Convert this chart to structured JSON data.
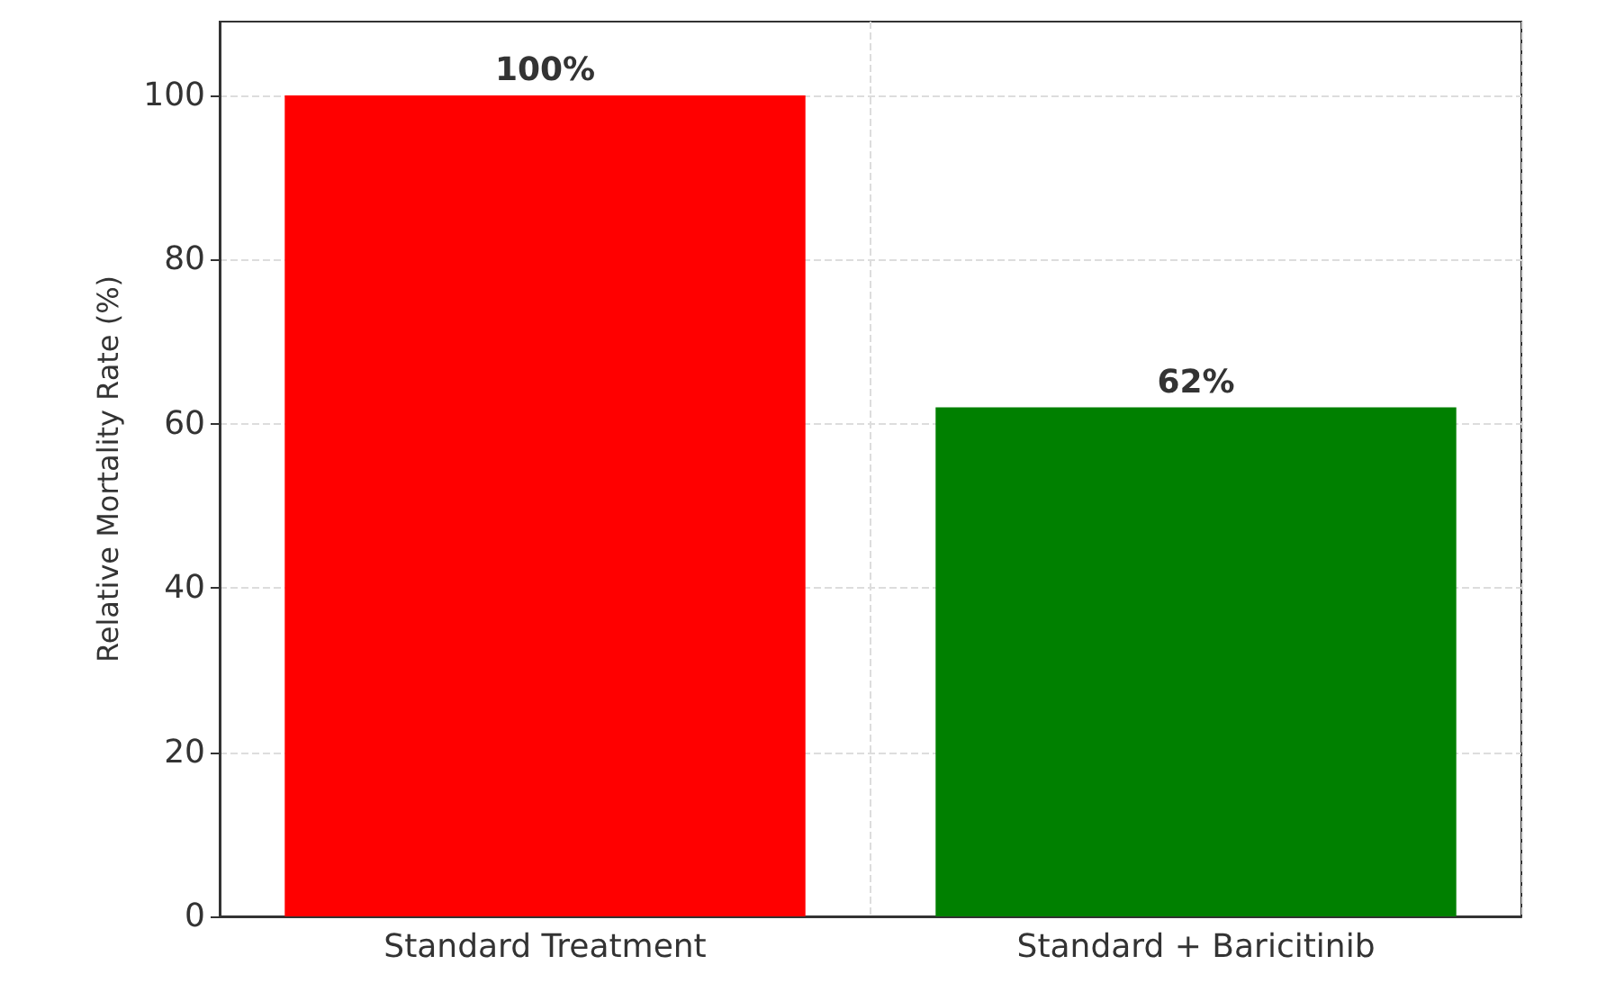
{
  "chart_data": {
    "type": "bar",
    "ylabel": "Relative Mortality Rate (%)",
    "categories": [
      "Standard Treatment",
      "Standard + Baricitinib"
    ],
    "values": [
      100,
      62
    ],
    "colors": [
      "#ff0000",
      "#008000"
    ],
    "value_labels": [
      "100%",
      "62%"
    ],
    "ylim": [
      0,
      109
    ],
    "yticks": [
      0,
      20,
      40,
      60,
      80,
      100
    ],
    "grid": true
  }
}
